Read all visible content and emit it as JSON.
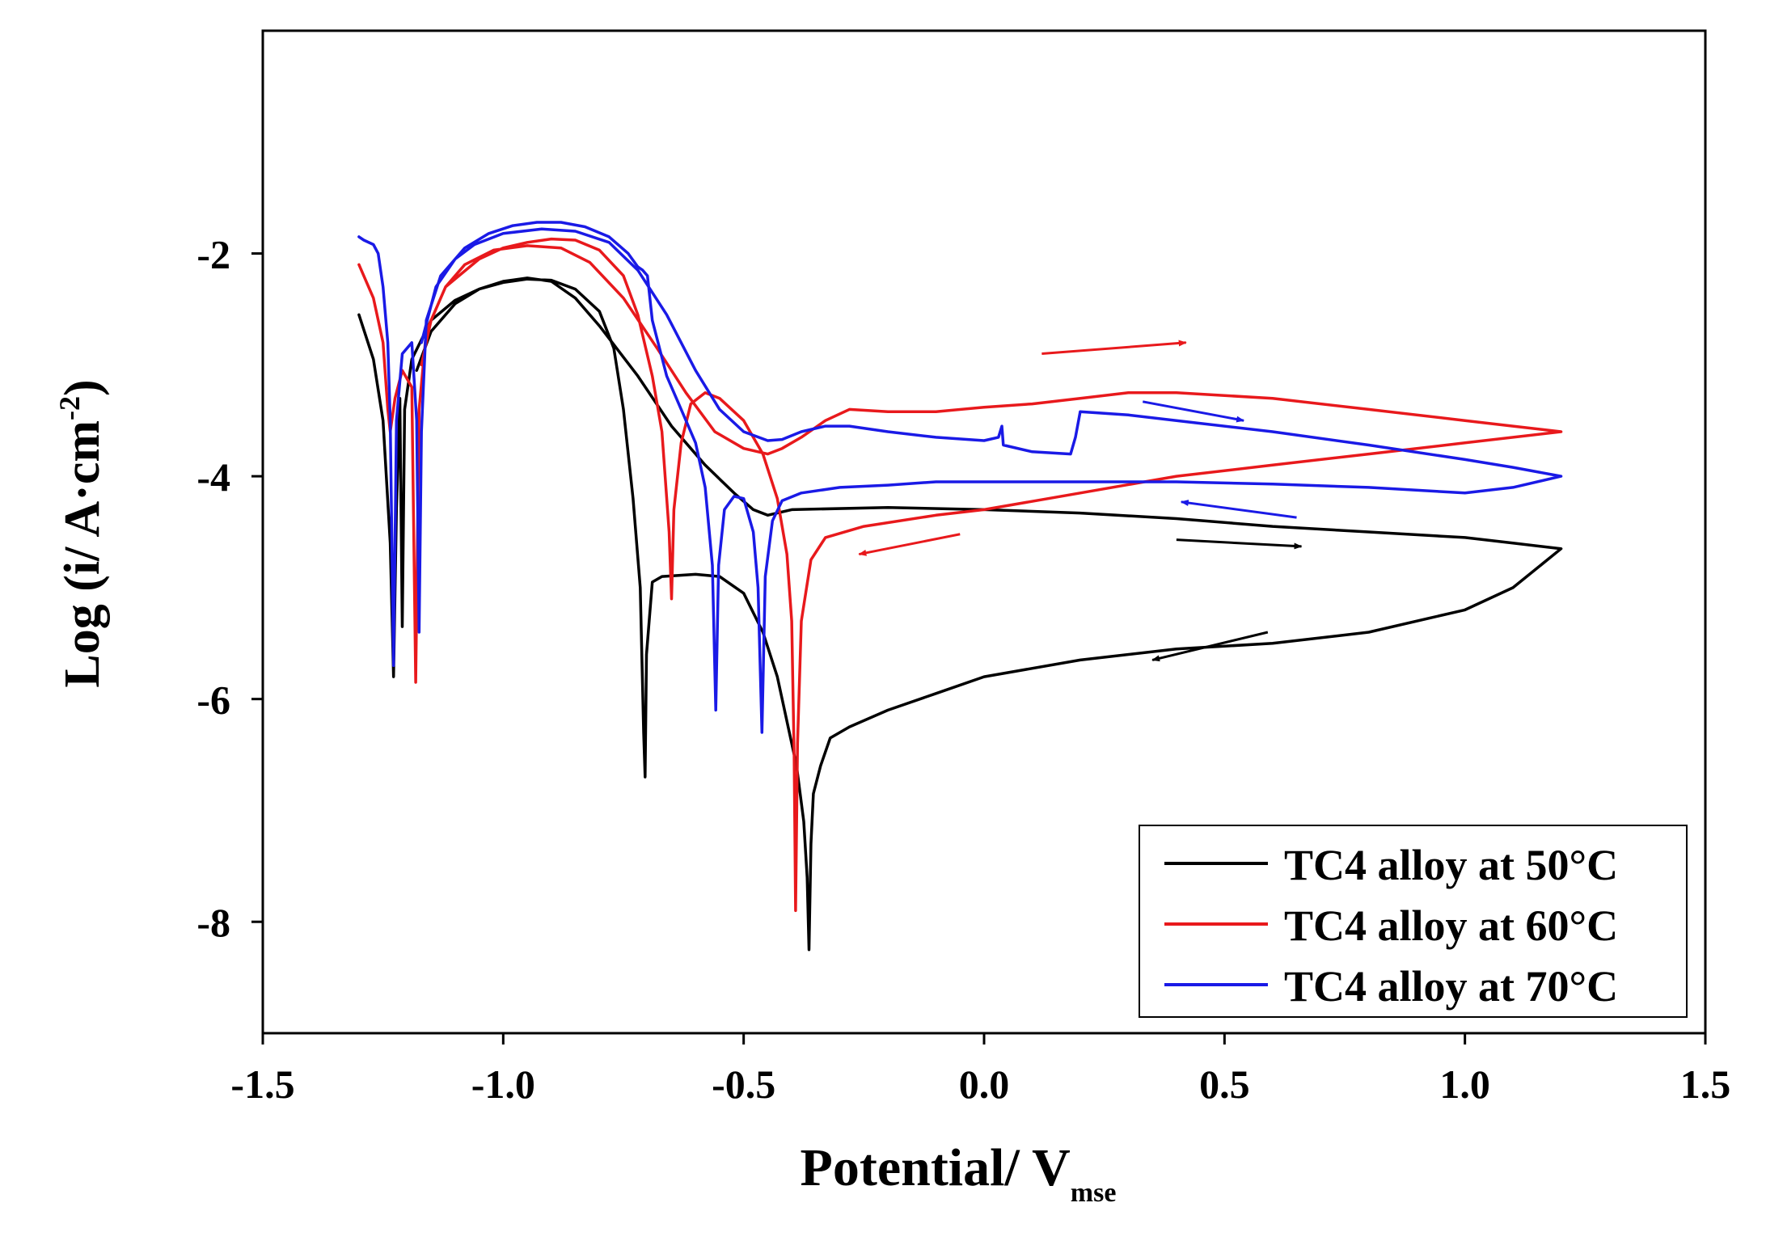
{
  "chart_data": {
    "type": "line",
    "title": "",
    "xlabel": "Potential/ V",
    "xlabel_sub": "mse",
    "ylabel": "Log (i/ A·cm",
    "ylabel_sup": "-2",
    "ylabel_close": ")",
    "xlim": [
      -1.5,
      1.5
    ],
    "ylim": [
      -9.0,
      0.0
    ],
    "x_ticks": [
      {
        "value": -1.5,
        "label": "-1.5"
      },
      {
        "value": -1.0,
        "label": "-1.0"
      },
      {
        "value": -0.5,
        "label": "-0.5"
      },
      {
        "value": 0.0,
        "label": "0.0"
      },
      {
        "value": 0.5,
        "label": "0.5"
      },
      {
        "value": 1.0,
        "label": "1.0"
      },
      {
        "value": 1.5,
        "label": "1.5"
      }
    ],
    "y_ticks": [
      {
        "value": -2,
        "label": "-2"
      },
      {
        "value": -4,
        "label": "-4"
      },
      {
        "value": -6,
        "label": "-6"
      },
      {
        "value": -8,
        "label": "-8"
      }
    ],
    "legend_position": "bottom-right",
    "series": [
      {
        "name": "TC4 alloy at 50°C",
        "color": "#000000",
        "points": [
          [
            -1.3,
            -2.55
          ],
          [
            -1.27,
            -2.95
          ],
          [
            -1.25,
            -3.5
          ],
          [
            -1.235,
            -4.6
          ],
          [
            -1.228,
            -5.8
          ],
          [
            -1.222,
            -4.3
          ],
          [
            -1.215,
            -3.3
          ],
          [
            -1.21,
            -5.35
          ],
          [
            -1.205,
            -3.4
          ],
          [
            -1.19,
            -2.95
          ],
          [
            -1.15,
            -2.6
          ],
          [
            -1.1,
            -2.42
          ],
          [
            -1.05,
            -2.32
          ],
          [
            -1.0,
            -2.26
          ],
          [
            -0.95,
            -2.23
          ],
          [
            -0.9,
            -2.24
          ],
          [
            -0.85,
            -2.32
          ],
          [
            -0.8,
            -2.52
          ],
          [
            -0.77,
            -2.85
          ],
          [
            -0.75,
            -3.4
          ],
          [
            -0.73,
            -4.2
          ],
          [
            -0.715,
            -5.0
          ],
          [
            -0.708,
            -6.3
          ],
          [
            -0.705,
            -6.7
          ],
          [
            -0.702,
            -5.6
          ],
          [
            -0.69,
            -4.95
          ],
          [
            -0.67,
            -4.9
          ],
          [
            -0.6,
            -4.88
          ],
          [
            -0.55,
            -4.9
          ],
          [
            -0.5,
            -5.05
          ],
          [
            -0.46,
            -5.4
          ],
          [
            -0.43,
            -5.8
          ],
          [
            -0.41,
            -6.2
          ],
          [
            -0.39,
            -6.6
          ],
          [
            -0.375,
            -7.1
          ],
          [
            -0.368,
            -7.6
          ],
          [
            -0.364,
            -8.25
          ],
          [
            -0.36,
            -7.3
          ],
          [
            -0.355,
            -6.85
          ],
          [
            -0.34,
            -6.6
          ],
          [
            -0.32,
            -6.35
          ],
          [
            -0.28,
            -6.25
          ],
          [
            -0.2,
            -6.1
          ],
          [
            -0.1,
            -5.95
          ],
          [
            0.0,
            -5.8
          ],
          [
            0.2,
            -5.65
          ],
          [
            0.4,
            -5.55
          ],
          [
            0.6,
            -5.5
          ],
          [
            0.8,
            -5.4
          ],
          [
            1.0,
            -5.2
          ],
          [
            1.1,
            -5.0
          ],
          [
            1.2,
            -4.65
          ],
          [
            1.1,
            -4.6
          ],
          [
            1.0,
            -4.55
          ],
          [
            0.8,
            -4.5
          ],
          [
            0.6,
            -4.45
          ],
          [
            0.4,
            -4.38
          ],
          [
            0.2,
            -4.33
          ],
          [
            0.0,
            -4.3
          ],
          [
            -0.2,
            -4.28
          ],
          [
            -0.4,
            -4.3
          ],
          [
            -0.45,
            -4.35
          ],
          [
            -0.48,
            -4.3
          ],
          [
            -0.52,
            -4.15
          ],
          [
            -0.58,
            -3.9
          ],
          [
            -0.65,
            -3.55
          ],
          [
            -0.72,
            -3.1
          ],
          [
            -0.8,
            -2.65
          ],
          [
            -0.85,
            -2.4
          ],
          [
            -0.9,
            -2.25
          ],
          [
            -0.95,
            -2.22
          ],
          [
            -1.0,
            -2.25
          ],
          [
            -1.05,
            -2.32
          ],
          [
            -1.1,
            -2.45
          ],
          [
            -1.15,
            -2.7
          ],
          [
            -1.18,
            -3.05
          ]
        ]
      },
      {
        "name": "TC4 alloy at 60°C",
        "color": "#e8191c",
        "points": [
          [
            -1.3,
            -2.1
          ],
          [
            -1.27,
            -2.4
          ],
          [
            -1.25,
            -2.8
          ],
          [
            -1.24,
            -3.4
          ],
          [
            -1.235,
            -3.6
          ],
          [
            -1.225,
            -3.3
          ],
          [
            -1.21,
            -3.05
          ],
          [
            -1.19,
            -3.2
          ],
          [
            -1.182,
            -5.85
          ],
          [
            -1.175,
            -3.4
          ],
          [
            -1.16,
            -2.7
          ],
          [
            -1.12,
            -2.3
          ],
          [
            -1.05,
            -2.05
          ],
          [
            -1.0,
            -1.95
          ],
          [
            -0.95,
            -1.9
          ],
          [
            -0.9,
            -1.87
          ],
          [
            -0.85,
            -1.88
          ],
          [
            -0.8,
            -1.97
          ],
          [
            -0.75,
            -2.2
          ],
          [
            -0.72,
            -2.55
          ],
          [
            -0.69,
            -3.1
          ],
          [
            -0.67,
            -3.6
          ],
          [
            -0.655,
            -4.5
          ],
          [
            -0.65,
            -5.1
          ],
          [
            -0.645,
            -4.3
          ],
          [
            -0.63,
            -3.7
          ],
          [
            -0.61,
            -3.35
          ],
          [
            -0.58,
            -3.25
          ],
          [
            -0.55,
            -3.3
          ],
          [
            -0.5,
            -3.5
          ],
          [
            -0.46,
            -3.8
          ],
          [
            -0.43,
            -4.2
          ],
          [
            -0.41,
            -4.7
          ],
          [
            -0.4,
            -5.3
          ],
          [
            -0.395,
            -6.5
          ],
          [
            -0.392,
            -7.9
          ],
          [
            -0.388,
            -6.4
          ],
          [
            -0.38,
            -5.3
          ],
          [
            -0.36,
            -4.75
          ],
          [
            -0.33,
            -4.55
          ],
          [
            -0.25,
            -4.45
          ],
          [
            -0.1,
            -4.35
          ],
          [
            0.0,
            -4.3
          ],
          [
            0.2,
            -4.15
          ],
          [
            0.4,
            -4.0
          ],
          [
            0.6,
            -3.9
          ],
          [
            0.8,
            -3.8
          ],
          [
            1.0,
            -3.7
          ],
          [
            1.2,
            -3.6
          ],
          [
            1.1,
            -3.55
          ],
          [
            1.0,
            -3.5
          ],
          [
            0.8,
            -3.4
          ],
          [
            0.6,
            -3.3
          ],
          [
            0.4,
            -3.25
          ],
          [
            0.3,
            -3.25
          ],
          [
            0.2,
            -3.3
          ],
          [
            0.1,
            -3.35
          ],
          [
            0.0,
            -3.38
          ],
          [
            -0.1,
            -3.42
          ],
          [
            -0.2,
            -3.42
          ],
          [
            -0.28,
            -3.4
          ],
          [
            -0.33,
            -3.5
          ],
          [
            -0.38,
            -3.65
          ],
          [
            -0.42,
            -3.75
          ],
          [
            -0.45,
            -3.8
          ],
          [
            -0.5,
            -3.75
          ],
          [
            -0.56,
            -3.6
          ],
          [
            -0.62,
            -3.25
          ],
          [
            -0.68,
            -2.85
          ],
          [
            -0.75,
            -2.4
          ],
          [
            -0.82,
            -2.08
          ],
          [
            -0.88,
            -1.95
          ],
          [
            -0.95,
            -1.93
          ],
          [
            -1.02,
            -1.97
          ],
          [
            -1.08,
            -2.1
          ],
          [
            -1.12,
            -2.3
          ],
          [
            -1.15,
            -2.6
          ],
          [
            -1.17,
            -3.0
          ]
        ]
      },
      {
        "name": "TC4 alloy at 70°C",
        "color": "#1a1ae6",
        "points": [
          [
            -1.3,
            -1.85
          ],
          [
            -1.29,
            -1.88
          ],
          [
            -1.27,
            -1.92
          ],
          [
            -1.26,
            -2.0
          ],
          [
            -1.25,
            -2.3
          ],
          [
            -1.24,
            -2.8
          ],
          [
            -1.235,
            -3.5
          ],
          [
            -1.228,
            -5.7
          ],
          [
            -1.222,
            -3.5
          ],
          [
            -1.21,
            -2.9
          ],
          [
            -1.19,
            -2.8
          ],
          [
            -1.18,
            -3.5
          ],
          [
            -1.175,
            -5.4
          ],
          [
            -1.17,
            -3.6
          ],
          [
            -1.16,
            -2.6
          ],
          [
            -1.13,
            -2.2
          ],
          [
            -1.08,
            -1.95
          ],
          [
            -1.03,
            -1.82
          ],
          [
            -0.98,
            -1.75
          ],
          [
            -0.93,
            -1.72
          ],
          [
            -0.88,
            -1.72
          ],
          [
            -0.83,
            -1.76
          ],
          [
            -0.78,
            -1.85
          ],
          [
            -0.74,
            -2.0
          ],
          [
            -0.72,
            -2.12
          ],
          [
            -0.71,
            -2.15
          ],
          [
            -0.7,
            -2.2
          ],
          [
            -0.69,
            -2.6
          ],
          [
            -0.66,
            -3.1
          ],
          [
            -0.63,
            -3.4
          ],
          [
            -0.6,
            -3.7
          ],
          [
            -0.58,
            -4.1
          ],
          [
            -0.565,
            -4.8
          ],
          [
            -0.558,
            -6.1
          ],
          [
            -0.552,
            -4.8
          ],
          [
            -0.54,
            -4.3
          ],
          [
            -0.52,
            -4.18
          ],
          [
            -0.5,
            -4.2
          ],
          [
            -0.48,
            -4.5
          ],
          [
            -0.47,
            -5.0
          ],
          [
            -0.462,
            -6.3
          ],
          [
            -0.455,
            -4.9
          ],
          [
            -0.44,
            -4.4
          ],
          [
            -0.42,
            -4.22
          ],
          [
            -0.38,
            -4.15
          ],
          [
            -0.3,
            -4.1
          ],
          [
            -0.2,
            -4.08
          ],
          [
            -0.1,
            -4.05
          ],
          [
            0.0,
            -4.05
          ],
          [
            0.2,
            -4.05
          ],
          [
            0.4,
            -4.05
          ],
          [
            0.6,
            -4.07
          ],
          [
            0.8,
            -4.1
          ],
          [
            1.0,
            -4.15
          ],
          [
            1.1,
            -4.1
          ],
          [
            1.2,
            -4.0
          ],
          [
            1.1,
            -3.92
          ],
          [
            1.0,
            -3.85
          ],
          [
            0.8,
            -3.72
          ],
          [
            0.6,
            -3.6
          ],
          [
            0.4,
            -3.5
          ],
          [
            0.3,
            -3.45
          ],
          [
            0.2,
            -3.42
          ],
          [
            0.19,
            -3.65
          ],
          [
            0.18,
            -3.8
          ],
          [
            0.1,
            -3.78
          ],
          [
            0.04,
            -3.72
          ],
          [
            0.037,
            -3.55
          ],
          [
            0.03,
            -3.65
          ],
          [
            0.0,
            -3.68
          ],
          [
            -0.1,
            -3.65
          ],
          [
            -0.2,
            -3.6
          ],
          [
            -0.28,
            -3.55
          ],
          [
            -0.33,
            -3.55
          ],
          [
            -0.38,
            -3.6
          ],
          [
            -0.42,
            -3.67
          ],
          [
            -0.45,
            -3.68
          ],
          [
            -0.5,
            -3.6
          ],
          [
            -0.55,
            -3.4
          ],
          [
            -0.6,
            -3.05
          ],
          [
            -0.66,
            -2.55
          ],
          [
            -0.72,
            -2.15
          ],
          [
            -0.78,
            -1.9
          ],
          [
            -0.85,
            -1.8
          ],
          [
            -0.92,
            -1.78
          ],
          [
            -1.0,
            -1.82
          ],
          [
            -1.06,
            -1.92
          ],
          [
            -1.1,
            -2.05
          ],
          [
            -1.14,
            -2.3
          ],
          [
            -1.17,
            -2.8
          ]
        ]
      }
    ],
    "scan_arrows": [
      {
        "color": "#e8191c",
        "from": [
          0.12,
          -2.9
        ],
        "to": [
          0.42,
          -2.8
        ]
      },
      {
        "color": "#1a1ae6",
        "from": [
          0.33,
          -3.33
        ],
        "to": [
          0.54,
          -3.5
        ]
      },
      {
        "color": "#1a1ae6",
        "from": [
          0.65,
          -4.37
        ],
        "to": [
          0.41,
          -4.23
        ]
      },
      {
        "color": "#000000",
        "from": [
          0.4,
          -4.57
        ],
        "to": [
          0.66,
          -4.63
        ]
      },
      {
        "color": "#000000",
        "from": [
          0.59,
          -5.4
        ],
        "to": [
          0.35,
          -5.65
        ]
      },
      {
        "color": "#e8191c",
        "from": [
          -0.05,
          -4.52
        ],
        "to": [
          -0.26,
          -4.7
        ]
      }
    ]
  }
}
